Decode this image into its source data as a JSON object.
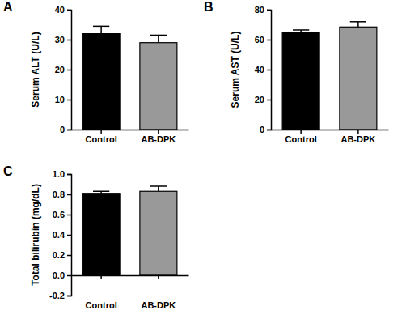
{
  "chart_data": [
    {
      "type": "bar",
      "title": "A",
      "y_label": "Serum ALT (U/L)",
      "categories": [
        "Control",
        "AB-DPK"
      ],
      "values": [
        32,
        29
      ],
      "errors": [
        2.5,
        2.5
      ],
      "colors": [
        "#000000",
        "#999999"
      ],
      "ylim": [
        0,
        40
      ],
      "yticks": [
        0,
        10,
        20,
        30,
        40
      ]
    },
    {
      "type": "bar",
      "title": "B",
      "y_label": "Serum AST (U/L)",
      "categories": [
        "Control",
        "AB-DPK"
      ],
      "values": [
        65,
        68.5
      ],
      "errors": [
        1.5,
        3.5
      ],
      "colors": [
        "#000000",
        "#999999"
      ],
      "ylim": [
        0,
        80
      ],
      "yticks": [
        0,
        20,
        40,
        60,
        80
      ]
    },
    {
      "type": "bar",
      "title": "C",
      "y_label": "Total bilirubin (mg/dL)",
      "categories": [
        "Control",
        "AB-DPK"
      ],
      "values": [
        0.81,
        0.83
      ],
      "errors": [
        0.02,
        0.05
      ],
      "colors": [
        "#000000",
        "#999999"
      ],
      "ylim": [
        -0.2,
        1.0
      ],
      "yticks": [
        -0.2,
        {
          "value": 0,
          "label": "0.0"
        },
        0.2,
        0.4,
        0.6,
        0.8,
        {
          "value": 1,
          "label": "1.0"
        }
      ]
    }
  ]
}
